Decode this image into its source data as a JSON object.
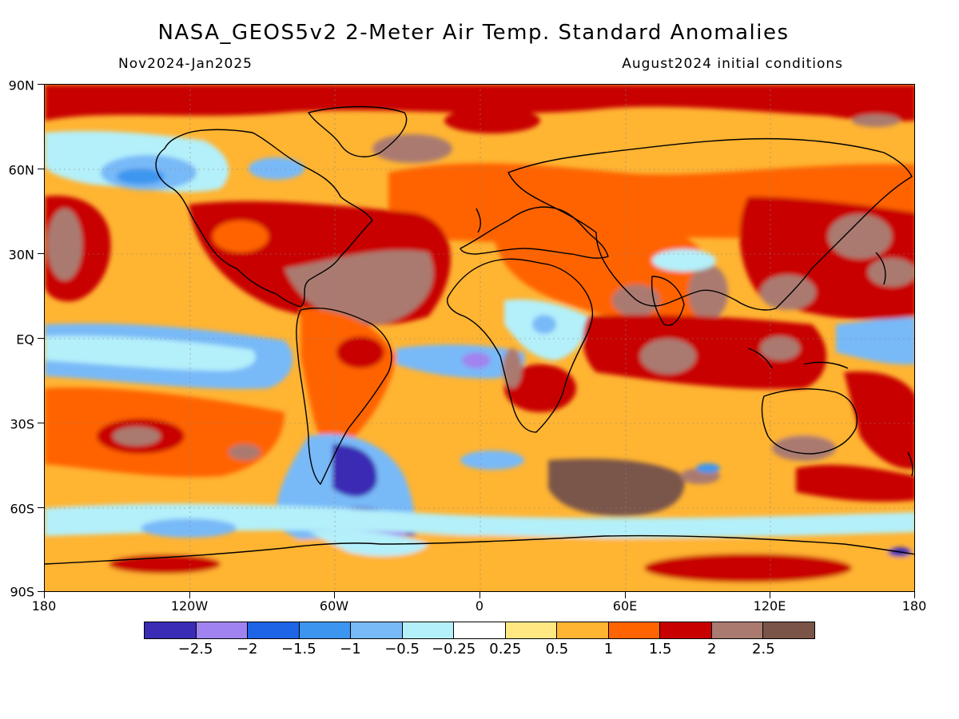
{
  "header": {
    "title": "NASA_GEOS5v2 2-Meter Air Temp. Standard Anomalies",
    "period": "Nov2024-Jan2025",
    "init": "August2024 initial conditions"
  },
  "axes": {
    "y_ticks": [
      "90N",
      "60N",
      "30N",
      "EQ",
      "30S",
      "60S",
      "90S"
    ],
    "x_ticks": [
      "180",
      "120W",
      "60W",
      "0",
      "60E",
      "120E",
      "180"
    ]
  },
  "colorbar": {
    "colors": [
      "#3a2cb4",
      "#a083f0",
      "#1e64e6",
      "#3c96f0",
      "#78b9f8",
      "#b4f0fa",
      "#ffffff",
      "#ffe882",
      "#ffb432",
      "#ff6400",
      "#c80000",
      "#aa7a70",
      "#7a5448"
    ],
    "labels": [
      "-2.5",
      "-2",
      "-1.5",
      "-1",
      "-0.5",
      "-0.25",
      "0.25",
      "0.5",
      "1",
      "1.5",
      "2",
      "2.5"
    ]
  },
  "legend_position": "bottom"
}
